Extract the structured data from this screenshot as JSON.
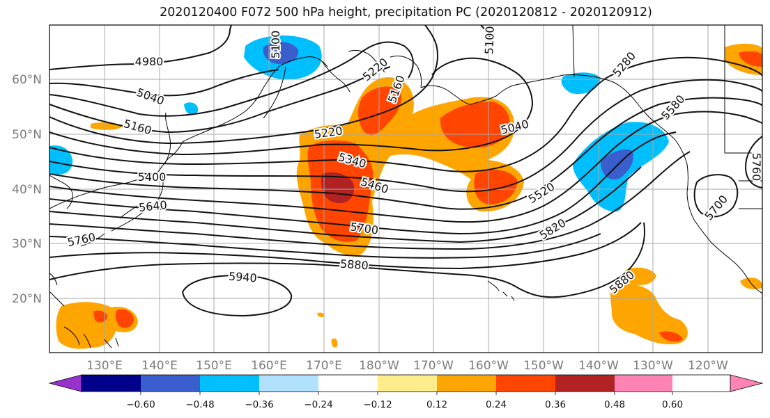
{
  "title": "2020120400 F072 500 hPa height, precipitation PC (2020120812 - 2020120912)",
  "lat_labels": [
    "60°N",
    "50°N",
    "40°N",
    "30°N",
    "20°N"
  ],
  "lon_labels": [
    "130°E",
    "140°E",
    "150°E",
    "160°E",
    "170°E",
    "180°W",
    "170°W",
    "160°W",
    "150°W",
    "140°W",
    "130°W",
    "120°W"
  ],
  "contour_labels": [
    "4980",
    "5040",
    "5160",
    "5220",
    "5160",
    "5100",
    "5220",
    "5340",
    "5460",
    "5400",
    "5640",
    "5760",
    "5700",
    "5880",
    "5940",
    "5040",
    "5520",
    "5820",
    "5280",
    "5580",
    "5700",
    "5760",
    "5880",
    "5100"
  ],
  "colorbar": {
    "ticks": [
      "−0.60",
      "−0.48",
      "−0.36",
      "−0.24",
      "−0.12",
      "0.12",
      "0.24",
      "0.36",
      "0.48",
      "0.60"
    ],
    "colors": [
      "#9932cc",
      "#00008b",
      "#3a5fcd",
      "#00bfff",
      "#b0e2ff",
      "#ffffff",
      "#ffec8b",
      "#ffa500",
      "#ff4500",
      "#b22222",
      "#ff83b4"
    ]
  }
}
